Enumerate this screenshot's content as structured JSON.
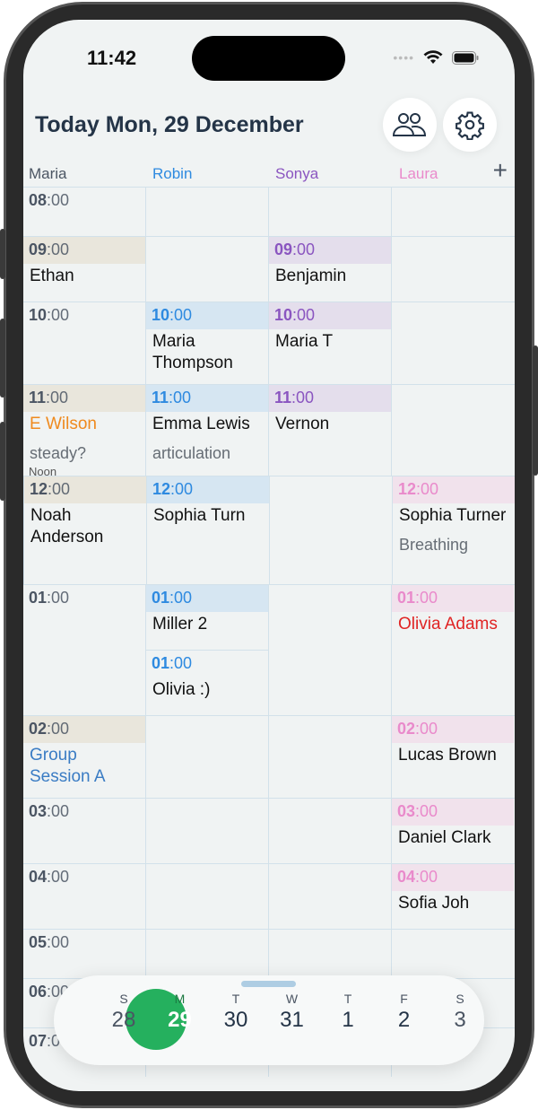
{
  "status": {
    "time": "11:42"
  },
  "header": {
    "title": "Today Mon, 29 December",
    "team_icon": "people-icon",
    "settings_icon": "gear-icon",
    "add_icon": "plus-icon"
  },
  "colors": {
    "maria": "#4b5563",
    "robin": "#2e8ae0",
    "sonya": "#8a55c0",
    "laura": "#e98acb",
    "accent": "#25b05e"
  },
  "columns": [
    {
      "name": "Maria",
      "color": "#4b5563",
      "band": "#e9e6dc",
      "hour_color": "#4b5563"
    },
    {
      "name": "Robin",
      "color": "#2e8ae0",
      "band": "#d6e6f2",
      "hour_color": "#2e8ae0"
    },
    {
      "name": "Sonya",
      "color": "#8a55c0",
      "band": "#e4deec",
      "hour_color": "#8a55c0"
    },
    {
      "name": "Laura",
      "color": "#e98acb",
      "band": "#f1e2ec",
      "hour_color": "#e98acb"
    }
  ],
  "noon_label": "Noon",
  "rows": [
    {
      "hour": "08",
      "cells": [
        [
          {
            "hour": "08",
            "band": false,
            "lines": []
          }
        ],
        [],
        [],
        []
      ]
    },
    {
      "hour": "09",
      "cells": [
        [
          {
            "hour": "09",
            "band": true,
            "lines": [
              {
                "text": "Ethan"
              }
            ]
          }
        ],
        [],
        [
          {
            "hour": "09",
            "band": true,
            "lines": [
              {
                "text": "Benjamin"
              }
            ]
          }
        ],
        []
      ]
    },
    {
      "hour": "10",
      "cells": [
        [
          {
            "hour": "10",
            "band": false,
            "lines": []
          }
        ],
        [
          {
            "hour": "10",
            "band": true,
            "lines": [
              {
                "text": "Maria Thompson"
              }
            ]
          }
        ],
        [
          {
            "hour": "10",
            "band": true,
            "lines": [
              {
                "text": "Maria T"
              }
            ]
          }
        ],
        []
      ]
    },
    {
      "hour": "11",
      "cells": [
        [
          {
            "hour": "11",
            "band": true,
            "lines": [
              {
                "text": "E Wilson",
                "color": "#ef8a1e"
              },
              {
                "text": "steady?",
                "muted": true
              }
            ]
          }
        ],
        [
          {
            "hour": "11",
            "band": true,
            "lines": [
              {
                "text": "Emma Lewis"
              },
              {
                "text": "articulation",
                "muted": true
              }
            ]
          }
        ],
        [
          {
            "hour": "11",
            "band": true,
            "lines": [
              {
                "text": "Vernon"
              }
            ]
          }
        ],
        []
      ]
    },
    {
      "hour": "12",
      "noon": true,
      "cells": [
        [
          {
            "hour": "12",
            "band": true,
            "lines": [
              {
                "text": "Noah Anderson"
              }
            ]
          }
        ],
        [
          {
            "hour": "12",
            "band": true,
            "lines": [
              {
                "text": "Sophia Turn"
              }
            ]
          }
        ],
        [],
        [
          {
            "hour": "12",
            "band": true,
            "lines": [
              {
                "text": "Sophia Turner"
              },
              {
                "text": "Breathing",
                "muted": true
              }
            ]
          }
        ]
      ]
    },
    {
      "hour": "01",
      "cells": [
        [
          {
            "hour": "01",
            "band": false,
            "lines": []
          }
        ],
        [
          {
            "hour": "01",
            "band": true,
            "lines": [
              {
                "text": "Miller 2"
              }
            ]
          },
          {
            "hour": "01",
            "band": false,
            "lines": [
              {
                "text": "Olivia :)"
              }
            ]
          }
        ],
        [],
        [
          {
            "hour": "01",
            "band": true,
            "lines": [
              {
                "text": "Olivia Adams",
                "color": "#e02424"
              }
            ]
          }
        ]
      ]
    },
    {
      "hour": "02",
      "cells": [
        [
          {
            "hour": "02",
            "band": true,
            "lines": [
              {
                "text": "Group Session A",
                "color": "#3a7cc4"
              }
            ]
          }
        ],
        [],
        [],
        [
          {
            "hour": "02",
            "band": true,
            "lines": [
              {
                "text": "Lucas Brown"
              }
            ]
          }
        ]
      ]
    },
    {
      "hour": "03",
      "cells": [
        [
          {
            "hour": "03",
            "band": false,
            "lines": []
          }
        ],
        [],
        [],
        [
          {
            "hour": "03",
            "band": true,
            "lines": [
              {
                "text": "Daniel Clark"
              }
            ]
          }
        ]
      ]
    },
    {
      "hour": "04",
      "cells": [
        [
          {
            "hour": "04",
            "band": false,
            "lines": []
          }
        ],
        [],
        [],
        [
          {
            "hour": "04",
            "band": true,
            "lines": [
              {
                "text": "Sofia Joh"
              }
            ]
          }
        ]
      ]
    },
    {
      "hour": "05",
      "cells": [
        [
          {
            "hour": "05",
            "band": false,
            "lines": []
          }
        ],
        [],
        [],
        []
      ]
    },
    {
      "hour": "06",
      "cells": [
        [
          {
            "hour": "06",
            "band": false,
            "lines": []
          }
        ],
        [],
        [],
        []
      ]
    },
    {
      "hour": "07",
      "cells": [
        [
          {
            "hour": "07",
            "band": false,
            "lines": []
          }
        ],
        [],
        [],
        []
      ]
    }
  ],
  "minutes": ":00",
  "week": [
    {
      "dow": "S",
      "day": "28"
    },
    {
      "dow": "M",
      "day": "29",
      "selected": true
    },
    {
      "dow": "T",
      "day": "30"
    },
    {
      "dow": "W",
      "day": "31"
    },
    {
      "dow": "T",
      "day": "1"
    },
    {
      "dow": "F",
      "day": "2"
    },
    {
      "dow": "S",
      "day": "3"
    }
  ]
}
